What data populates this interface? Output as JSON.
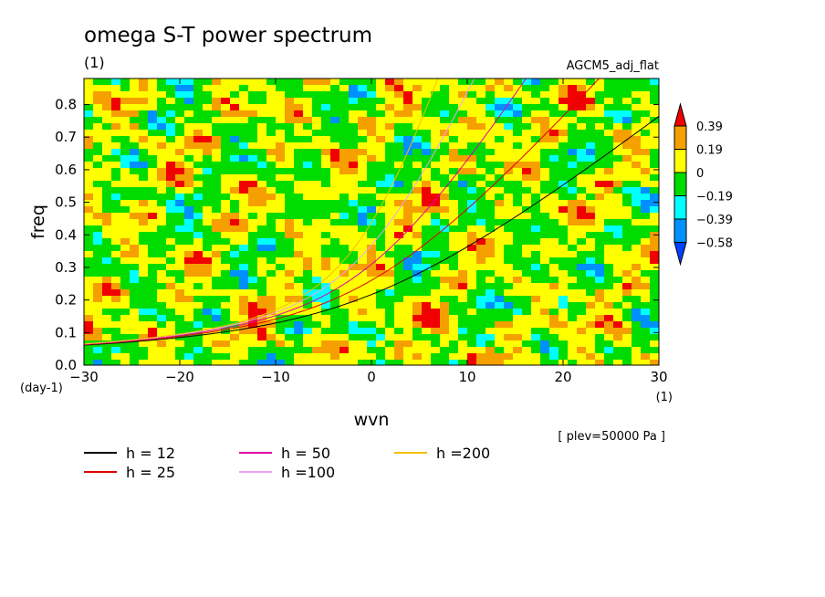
{
  "chart_data": {
    "type": "heatmap",
    "title": "omega S-T power spectrum",
    "subtitle": "(1)",
    "model": "AGCM5_adj_flat",
    "xlabel": "wvn",
    "ylabel": "freq",
    "x_unit": "(1)",
    "y_unit": "(day-1)",
    "xlim": [
      -30,
      30
    ],
    "ylim": [
      0,
      0.88
    ],
    "x_ticks": [
      "-30",
      "-20",
      "-10",
      "0",
      "10",
      "20",
      "30"
    ],
    "y_ticks": [
      "0.0",
      "0.1",
      "0.2",
      "0.3",
      "0.4",
      "0.5",
      "0.6",
      "0.7",
      "0.8"
    ],
    "level_note": "[ plev=50000 Pa ]",
    "colorbar": {
      "labels": [
        "0.39",
        "0.19",
        "0",
        "-0.19",
        "-0.39",
        "-0.58"
      ],
      "colors": [
        "#f00000",
        "#f5a000",
        "#ffff00",
        "#00dc00",
        "#00ffff",
        "#0090ff",
        "#0040ff"
      ]
    },
    "series": [
      {
        "name": "h = 12",
        "h": 12,
        "color": "#000000"
      },
      {
        "name": "h = 25",
        "h": 25,
        "color": "#e00000"
      },
      {
        "name": "h = 50",
        "h": 50,
        "color": "#e000a0"
      },
      {
        "name": "h =100",
        "h": 100,
        "color": "#f0a0f0"
      },
      {
        "name": "h =200",
        "h": 200,
        "color": "#f0c000"
      }
    ]
  }
}
